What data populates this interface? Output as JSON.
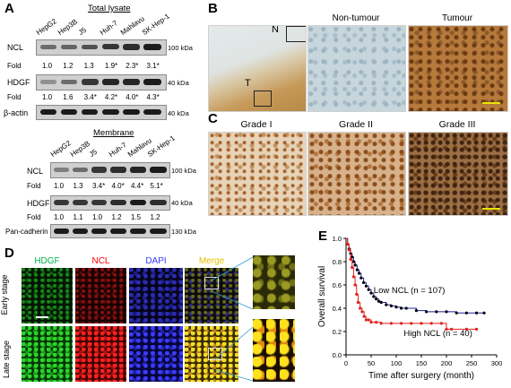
{
  "panelA": {
    "label": "A",
    "total": {
      "title": "Total lysate",
      "lanes": [
        "HepG2",
        "Hep3B",
        "J5",
        "Huh-7",
        "Mahlavu",
        "SK-Hep-1"
      ],
      "rows": [
        {
          "name": "NCL",
          "kda": "100 kDa",
          "fold_label": "Fold",
          "fold": [
            "1.0",
            "1.2",
            "1.3",
            "1.9*",
            "2.3*",
            "3.1*"
          ]
        },
        {
          "name": "HDGF",
          "kda": "40 kDa",
          "fold_label": "Fold",
          "fold": [
            "1.0",
            "1.6",
            "3.4*",
            "4.2*",
            "4.0*",
            "4.3*"
          ]
        },
        {
          "name": "β-actin",
          "kda": "40 kDa"
        }
      ]
    },
    "membrane": {
      "title": "Membrane",
      "lanes": [
        "HepG2",
        "Hep3B",
        "J5",
        "Huh-7",
        "Mahlavu",
        "SK-Hep-1"
      ],
      "rows": [
        {
          "name": "NCL",
          "kda": "100 kDa",
          "fold_label": "Fold",
          "fold": [
            "1.0",
            "1.3",
            "3.4*",
            "4.0*",
            "4.4*",
            "5.1*"
          ]
        },
        {
          "name": "HDGF",
          "kda": "40 kDa",
          "fold_label": "Fold",
          "fold": [
            "1.0",
            "1.1",
            "1.0",
            "1.2",
            "1.5",
            "1.2"
          ]
        },
        {
          "name": "Pan-cadherin",
          "kda": "130 kDa"
        }
      ]
    }
  },
  "panelB": {
    "label": "B",
    "inset_n": "N",
    "inset_t": "T",
    "heads": [
      "Non-tumour",
      "Tumour"
    ]
  },
  "panelC": {
    "label": "C",
    "heads": [
      "Grade I",
      "Grade II",
      "Grade III"
    ]
  },
  "panelD": {
    "label": "D",
    "heads": [
      "HDGF",
      "NCL",
      "DAPI",
      "Merge"
    ],
    "head_colors": [
      "#00b050",
      "#ff0000",
      "#3b3bff",
      "#e6c200"
    ],
    "rows": [
      "Early stage",
      "Late stage"
    ]
  },
  "panelE": {
    "label": "E",
    "chart_data": {
      "type": "line",
      "xlabel": "Time after surgery (month)",
      "ylabel": "Overall survival",
      "xlim": [
        0,
        300
      ],
      "ylim": [
        0,
        1.0
      ],
      "xticks": [
        0,
        50,
        100,
        150,
        200,
        250,
        300
      ],
      "yticks": [
        0,
        0.2,
        0.4,
        0.6,
        0.8,
        1.0
      ],
      "series": [
        {
          "name": "Low NCL (n = 107)",
          "color": "#1f1fa0",
          "x": [
            0,
            3,
            6,
            9,
            12,
            15,
            18,
            22,
            26,
            30,
            35,
            40,
            45,
            50,
            55,
            60,
            65,
            70,
            80,
            90,
            100,
            110,
            120,
            140,
            160,
            180,
            200,
            220,
            240,
            260,
            275
          ],
          "y": [
            1.0,
            0.95,
            0.91,
            0.87,
            0.84,
            0.8,
            0.77,
            0.73,
            0.7,
            0.66,
            0.62,
            0.59,
            0.56,
            0.53,
            0.5,
            0.48,
            0.46,
            0.45,
            0.43,
            0.42,
            0.41,
            0.4,
            0.4,
            0.38,
            0.37,
            0.37,
            0.37,
            0.36,
            0.36,
            0.36,
            0.36
          ]
        },
        {
          "name": "High NCL (n = 40)",
          "color": "#e02020",
          "x": [
            0,
            3,
            6,
            9,
            12,
            15,
            18,
            21,
            24,
            28,
            32,
            36,
            40,
            45,
            50,
            60,
            70,
            90,
            110,
            130,
            150,
            170,
            190,
            200,
            210,
            240,
            260
          ],
          "y": [
            1.0,
            0.95,
            0.9,
            0.82,
            0.75,
            0.67,
            0.6,
            0.52,
            0.45,
            0.4,
            0.37,
            0.33,
            0.3,
            0.3,
            0.28,
            0.28,
            0.27,
            0.27,
            0.27,
            0.27,
            0.27,
            0.27,
            0.27,
            0.22,
            0.22,
            0.22,
            0.22
          ]
        }
      ]
    }
  }
}
